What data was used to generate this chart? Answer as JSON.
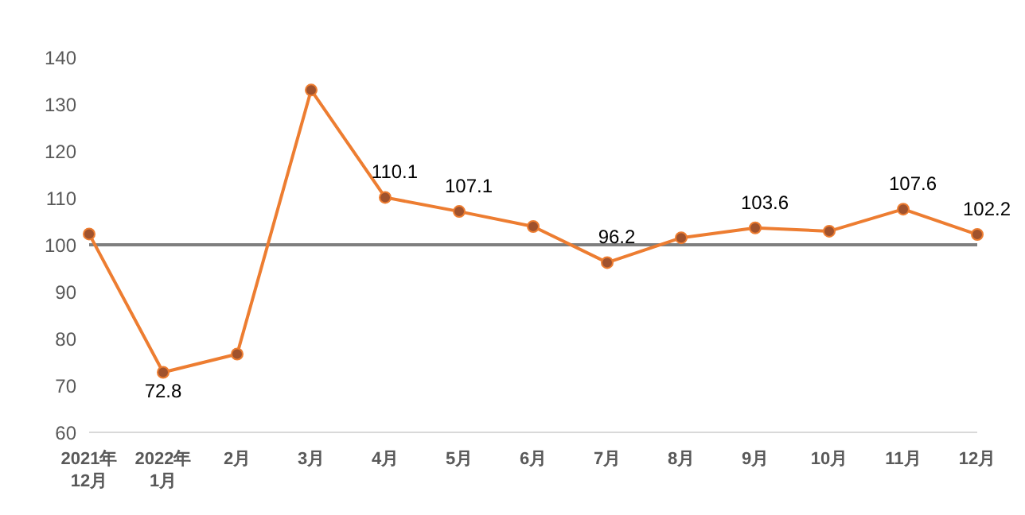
{
  "chart_data": {
    "type": "line",
    "categories": [
      "2021年\n12月",
      "2022年\n1月",
      "2月",
      "3月",
      "4月",
      "5月",
      "6月",
      "7月",
      "8月",
      "9月",
      "10月",
      "11月",
      "12月"
    ],
    "values": [
      102.3,
      72.8,
      76.7,
      133,
      110.1,
      107.1,
      103.9,
      96.2,
      101.5,
      103.6,
      102.9,
      107.6,
      102.2
    ],
    "value_labels": [
      null,
      "72.8",
      null,
      null,
      "110.1",
      "107.1",
      null,
      "96.2",
      null,
      "103.6",
      null,
      "107.6",
      "102.2"
    ],
    "color": "#ed7d31",
    "marker": "circle",
    "line_style": "solid",
    "ylim": [
      60,
      140
    ],
    "yticks": [
      60,
      70,
      80,
      90,
      100,
      110,
      120,
      130,
      140
    ],
    "grid": false,
    "ref_lines": [
      {
        "axis": "y",
        "value": 100,
        "color": "#7f7f7f"
      }
    ]
  }
}
